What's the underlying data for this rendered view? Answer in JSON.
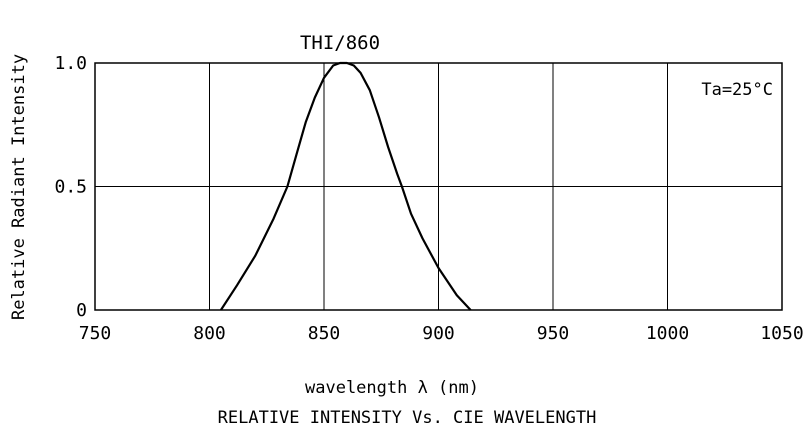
{
  "chart_data": {
    "type": "line",
    "title": "THI/860",
    "caption": "RELATIVE INTENSITY Vs. CIE WAVELENGTH",
    "xlabel": "wavelength λ (nm)",
    "ylabel": "Relative Radiant Intensity",
    "annotation": "Ta=25°C",
    "xlim": [
      750,
      1050
    ],
    "ylim": [
      0,
      1.0
    ],
    "x_ticks": [
      "750",
      "800",
      "850",
      "900",
      "950",
      "1000",
      "1050"
    ],
    "x_tick_values": [
      750,
      800,
      850,
      900,
      950,
      1000,
      1050
    ],
    "y_ticks": [
      "0",
      "0.5",
      "1.0"
    ],
    "y_tick_values": [
      0,
      0.5,
      1.0
    ],
    "grid": true,
    "series": [
      {
        "x": [
          805,
          812,
          820,
          828,
          834,
          838,
          842,
          846,
          850,
          854,
          857,
          860,
          863,
          866,
          870,
          874,
          878,
          882,
          884,
          888,
          893,
          900,
          908,
          914
        ],
        "y": [
          0.0,
          0.1,
          0.22,
          0.37,
          0.5,
          0.63,
          0.76,
          0.86,
          0.94,
          0.99,
          1.0,
          1.0,
          0.99,
          0.96,
          0.89,
          0.78,
          0.66,
          0.55,
          0.5,
          0.39,
          0.29,
          0.17,
          0.06,
          0.0
        ]
      }
    ]
  }
}
